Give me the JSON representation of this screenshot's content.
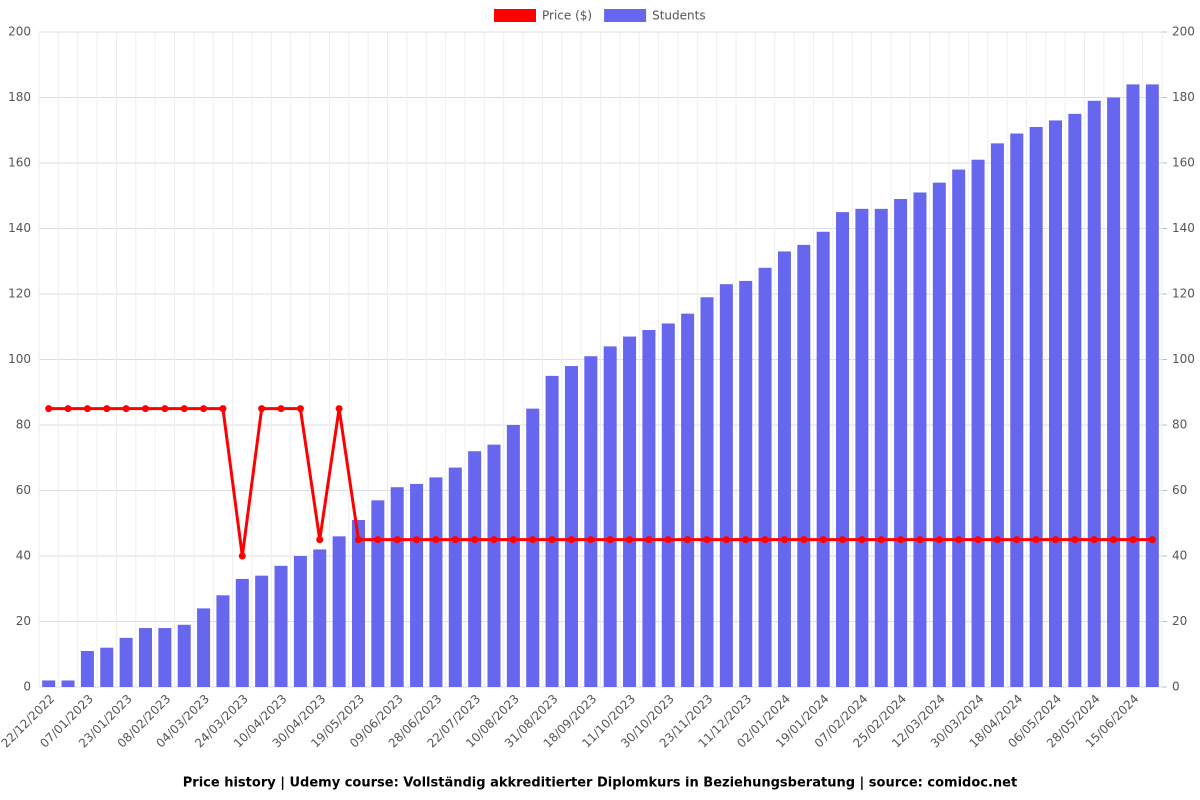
{
  "chart_data": {
    "type": "bar-line",
    "title": "Price history | Udemy course: Vollständig akkreditierter Diplomkurs in Beziehungsberatung | source: comidoc.net",
    "categories": [
      "22/12/2022",
      null,
      "07/01/2023",
      null,
      "23/01/2023",
      null,
      "08/02/2023",
      null,
      "04/03/2023",
      null,
      "24/03/2023",
      null,
      "10/04/2023",
      null,
      "30/04/2023",
      null,
      "19/05/2023",
      null,
      "09/06/2023",
      null,
      "28/06/2023",
      null,
      "22/07/2023",
      null,
      "10/08/2023",
      null,
      "31/08/2023",
      null,
      "18/09/2023",
      null,
      "11/10/2023",
      null,
      "30/10/2023",
      null,
      "23/11/2023",
      null,
      "11/12/2023",
      null,
      "02/01/2024",
      null,
      "19/01/2024",
      null,
      "07/02/2024",
      null,
      "25/02/2024",
      null,
      "12/03/2024",
      null,
      "30/03/2024",
      null,
      "18/04/2024",
      null,
      "06/05/2024",
      null,
      "28/05/2024",
      null,
      "15/06/2024",
      null
    ],
    "series": [
      {
        "name": "Price ($)",
        "color": "#ff0000",
        "kind": "line",
        "axis": "y",
        "values": [
          85,
          85,
          85,
          85,
          85,
          85,
          85,
          85,
          85,
          85,
          40,
          85,
          85,
          85,
          45,
          85,
          45,
          45,
          45,
          45,
          45,
          45,
          45,
          45,
          45,
          45,
          45,
          45,
          45,
          45,
          45,
          45,
          45,
          45,
          45,
          45,
          45,
          45,
          45,
          45,
          45,
          45,
          45,
          45,
          45,
          45,
          45,
          45,
          45,
          45,
          45,
          45,
          45,
          45,
          45,
          45,
          45,
          45
        ]
      },
      {
        "name": "Students",
        "color": "#6666ee",
        "kind": "bar",
        "axis": "y2",
        "values": [
          2,
          2,
          11,
          12,
          15,
          18,
          18,
          19,
          24,
          28,
          33,
          34,
          37,
          40,
          42,
          46,
          51,
          57,
          61,
          62,
          64,
          67,
          72,
          74,
          80,
          85,
          95,
          98,
          101,
          104,
          107,
          109,
          111,
          114,
          119,
          123,
          124,
          128,
          133,
          135,
          139,
          145,
          146,
          146,
          149,
          151,
          154,
          158,
          161,
          166,
          169,
          171,
          173,
          175,
          179,
          180,
          184,
          184
        ]
      }
    ],
    "ylim": [
      0,
      200
    ],
    "yticks": [
      0,
      20,
      40,
      60,
      80,
      100,
      120,
      140,
      160,
      180,
      200
    ],
    "y2lim": [
      0,
      200
    ],
    "y2ticks": [
      0,
      20,
      40,
      60,
      80,
      100,
      120,
      140,
      160,
      180,
      200
    ],
    "grid": true,
    "legend": "top"
  }
}
